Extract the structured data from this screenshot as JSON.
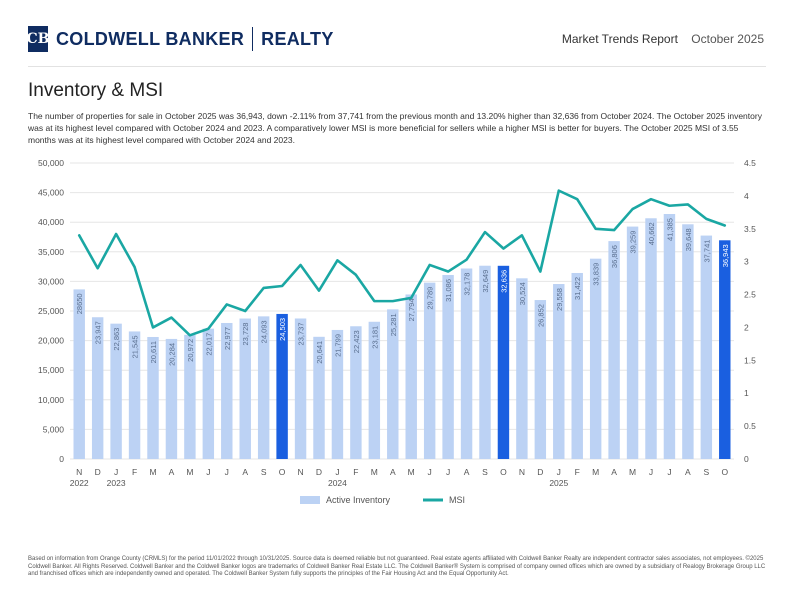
{
  "header": {
    "logo_glyph": "CB",
    "brand": "COLDWELL BANKER",
    "brand_suffix": "REALTY",
    "report_title": "Market Trends Report",
    "report_date": "October 2025"
  },
  "page": {
    "title": "Inventory & MSI",
    "description": "The number of properties for sale in October 2025 was 36,943, down -2.11% from 37,741 from the previous month and 13.20% higher than 32,636 from October 2024. The October 2025 inventory was at its highest level compared with October 2024 and 2023. A comparatively lower MSI is more beneficial for sellers while a higher MSI is better for buyers. The October 2025 MSI of 3.55 months was at its highest level compared with October 2024 and 2023."
  },
  "colors": {
    "bar": "#bcd2f4",
    "bar_highlight": "#1a5fe0",
    "line": "#1aa7a3",
    "brand": "#0f2c61"
  },
  "chart_data": {
    "type": "bar",
    "categories": [
      "N",
      "D",
      "J",
      "F",
      "M",
      "A",
      "M",
      "J",
      "J",
      "A",
      "S",
      "O",
      "N",
      "D",
      "J",
      "F",
      "M",
      "A",
      "M",
      "J",
      "J",
      "A",
      "S",
      "O",
      "N",
      "D",
      "J",
      "F",
      "M",
      "A",
      "M",
      "J",
      "J",
      "A",
      "S",
      "O"
    ],
    "year_labels": [
      {
        "index": 0,
        "label": "2022"
      },
      {
        "index": 2,
        "label": "2023"
      },
      {
        "index": 14,
        "label": "2024"
      },
      {
        "index": 26,
        "label": "2025"
      }
    ],
    "highlight_indices": [
      11,
      23,
      35
    ],
    "series": [
      {
        "name": "Active Inventory",
        "axis": "left",
        "values": [
          28650,
          23947,
          22863,
          21545,
          20611,
          20284,
          20972,
          22017,
          22977,
          23728,
          24093,
          24503,
          23737,
          20641,
          21799,
          22423,
          23181,
          25281,
          27794,
          29789,
          31086,
          32178,
          32649,
          32636,
          30524,
          26852,
          29558,
          31422,
          33839,
          36806,
          39259,
          40662,
          41385,
          39648,
          37741,
          36943
        ],
        "value_labels": [
          "28650",
          "23,947",
          "22,863",
          "21,545",
          "20,611",
          "20,284",
          "20,972",
          "22,017",
          "22,977",
          "23,728",
          "24,093",
          "24,503",
          "23,737",
          "20,641",
          "21,799",
          "22,423",
          "23,181",
          "25,281",
          "27,794",
          "29,789",
          "31,086",
          "32,178",
          "32,649",
          "32,636",
          "30,524",
          "26,852",
          "29,558",
          "31,422",
          "33,839",
          "36,806",
          "39,259",
          "40,662",
          "41,385",
          "39,648",
          "37,741",
          "36,943"
        ]
      },
      {
        "name": "MSI",
        "type": "line",
        "axis": "right",
        "values": [
          3.4,
          2.9,
          3.42,
          2.92,
          2.0,
          2.15,
          1.88,
          1.98,
          2.35,
          2.25,
          2.6,
          2.63,
          2.95,
          2.56,
          3.02,
          2.8,
          2.4,
          2.4,
          2.45,
          2.95,
          2.85,
          3.03,
          3.45,
          3.2,
          3.4,
          2.85,
          4.08,
          3.95,
          3.5,
          3.48,
          3.8,
          3.95,
          3.85,
          3.87,
          3.65,
          3.55
        ]
      }
    ],
    "y_left": {
      "min": 0,
      "max": 50000,
      "step": 5000,
      "tick_labels": [
        "0",
        "5,000",
        "10,000",
        "15,000",
        "20,000",
        "25,000",
        "30,000",
        "35,000",
        "40,000",
        "45,000",
        "50,000"
      ]
    },
    "y_right": {
      "min": 0,
      "max": 4.5,
      "step": 0.5,
      "tick_labels": [
        "0",
        "0.5",
        "1",
        "1.5",
        "2",
        "2.5",
        "3",
        "3.5",
        "4",
        "4.5"
      ]
    },
    "legend": {
      "position": "bottom-center",
      "items": [
        "Active Inventory",
        "MSI"
      ]
    }
  },
  "footer": {
    "text": "Based on information from Orange County (CRMLS) for the period 11/01/2022 through 10/31/2025. Source data is deemed reliable but not guaranteed. Real estate agents affiliated with Coldwell Banker Realty are independent contractor sales associates, not employees. ©2025 Coldwell Banker. All Rights Reserved. Coldwell Banker and the Coldwell Banker logos are trademarks of Coldwell Banker Real Estate LLC. The Coldwell Banker® System is comprised of company owned offices which are owned by a subsidiary of Realogy Brokerage Group LLC and franchised offices which are independently owned and operated. The Coldwell Banker System fully supports the principles of the Fair Housing Act and the Equal Opportunity Act."
  }
}
